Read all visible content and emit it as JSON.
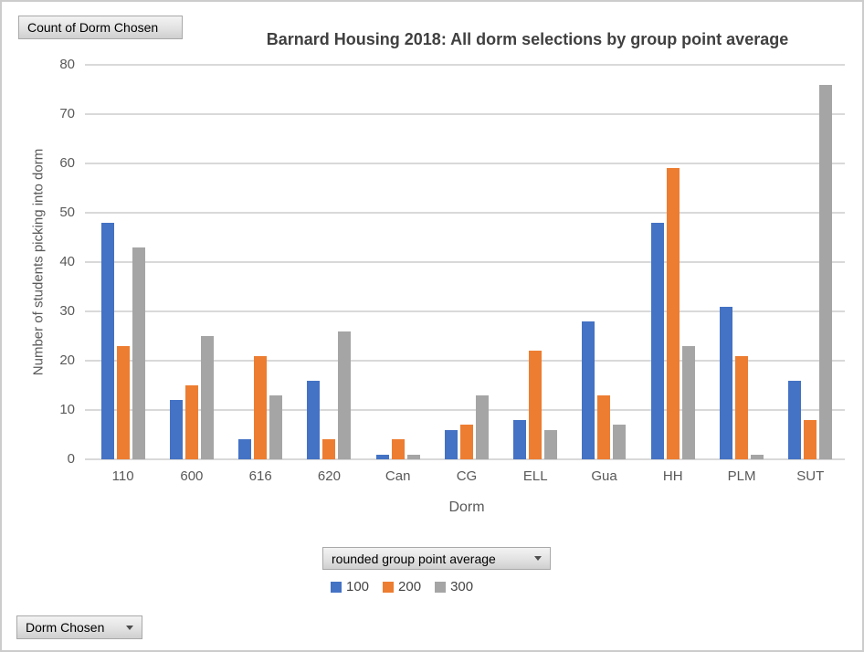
{
  "window": {
    "background": "#ffffff",
    "border_color": "#cccccc"
  },
  "pivot_buttons": {
    "value_field": "Count of Dorm Chosen",
    "legend_field": "rounded group point average",
    "axis_field": "Dorm Chosen"
  },
  "chart_data": {
    "type": "bar",
    "title": "Barnard Housing 2018: All dorm selections by group point average",
    "xlabel": "Dorm",
    "ylabel": "Number of students picking into dorm",
    "categories": [
      "110",
      "600",
      "616",
      "620",
      "Can",
      "CG",
      "ELL",
      "Gua",
      "HH",
      "PLM",
      "SUT"
    ],
    "series": [
      {
        "name": "100",
        "color": "#4472C4",
        "values": [
          48,
          12,
          4,
          16,
          1,
          6,
          8,
          28,
          48,
          31,
          16
        ]
      },
      {
        "name": "200",
        "color": "#ED7D31",
        "values": [
          23,
          15,
          21,
          4,
          4,
          7,
          22,
          13,
          59,
          21,
          8
        ]
      },
      {
        "name": "300",
        "color": "#A5A5A5",
        "values": [
          43,
          25,
          13,
          26,
          1,
          13,
          6,
          7,
          23,
          1,
          76
        ]
      }
    ],
    "ylim": [
      0,
      80
    ],
    "yticks": [
      0,
      10,
      20,
      30,
      40,
      50,
      60,
      70,
      80
    ],
    "grid": true,
    "legend_position": "bottom",
    "gridline_color": "#d9d9d9",
    "axis_text_color": "#595959",
    "title_color": "#404040"
  }
}
